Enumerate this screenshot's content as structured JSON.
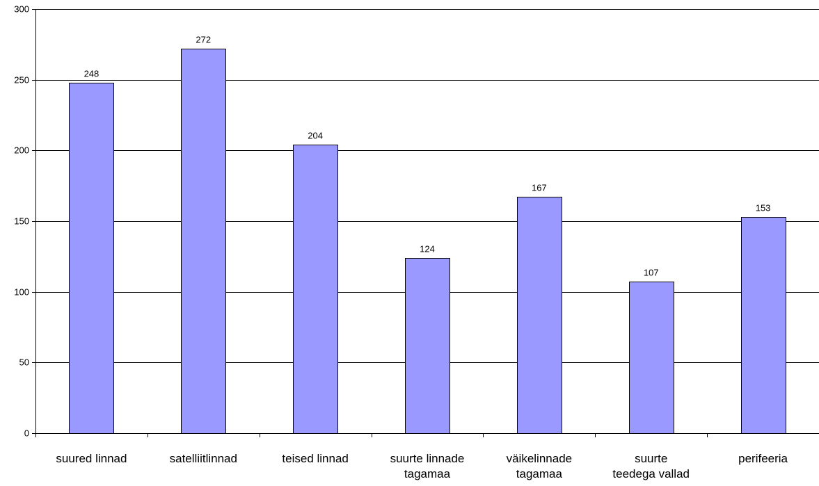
{
  "chart_data": {
    "type": "bar",
    "title": "",
    "xlabel": "",
    "ylabel": "",
    "categories": [
      [
        "suured linnad"
      ],
      [
        "satelliitlinnad"
      ],
      [
        "teised linnad"
      ],
      [
        "suurte linnade",
        "tagamaa"
      ],
      [
        "väikelinnade",
        "tagamaa"
      ],
      [
        "suurte",
        "teedega vallad"
      ],
      [
        "perifeeria"
      ]
    ],
    "values": [
      248,
      272,
      204,
      124,
      167,
      107,
      153
    ],
    "ylim": [
      0,
      300
    ],
    "yticks": [
      0,
      50,
      100,
      150,
      200,
      250,
      300
    ],
    "grid": true,
    "bar_color": "#9999ff",
    "bar_stroke": "#000000"
  }
}
